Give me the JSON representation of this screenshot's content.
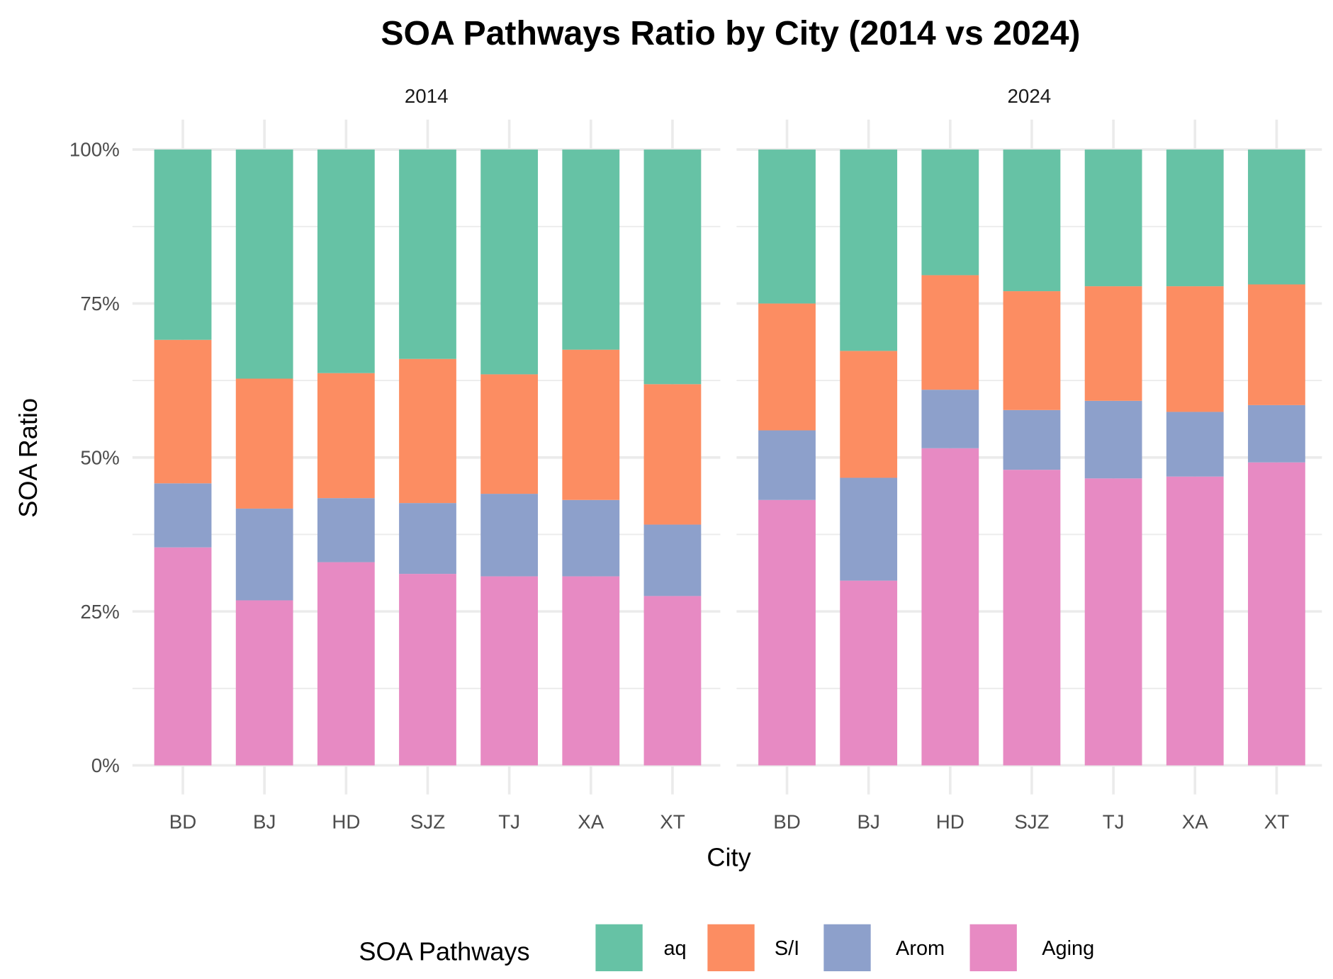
{
  "chart_data": {
    "type": "bar",
    "stacked": true,
    "normalized": true,
    "title": "SOA Pathways Ratio by City (2014 vs 2024)",
    "xlabel": "City",
    "ylabel": "SOA Ratio",
    "ylim": [
      0,
      100
    ],
    "y_ticks": [
      "0%",
      "25%",
      "50%",
      "75%",
      "100%"
    ],
    "y_tick_values": [
      0,
      25,
      50,
      75,
      100
    ],
    "categories": [
      "BD",
      "BJ",
      "HD",
      "SJZ",
      "TJ",
      "XA",
      "XT"
    ],
    "grid": true,
    "legend": {
      "title": "SOA Pathways",
      "position": "bottom",
      "entries": [
        "aq",
        "S/I",
        "Arom",
        "Aging"
      ]
    },
    "colors": {
      "aq": "#66c2a5",
      "S/I": "#fc8d62",
      "Arom": "#8da0cb",
      "Aging": "#e78ac3"
    },
    "stack_order_bottom_to_top": [
      "Aging",
      "Arom",
      "S/I",
      "aq"
    ],
    "facets": [
      {
        "label": "2014",
        "series": [
          {
            "name": "Aging",
            "values": [
              35.4,
              26.8,
              33.0,
              31.1,
              30.7,
              30.7,
              27.5
            ]
          },
          {
            "name": "Arom",
            "values": [
              10.4,
              14.9,
              10.4,
              11.5,
              13.4,
              12.4,
              11.6
            ]
          },
          {
            "name": "S/I",
            "values": [
              23.3,
              21.1,
              20.3,
              23.4,
              19.4,
              24.4,
              22.8
            ]
          },
          {
            "name": "aq",
            "values": [
              30.9,
              37.2,
              36.3,
              34.0,
              36.5,
              32.5,
              38.1
            ]
          }
        ]
      },
      {
        "label": "2024",
        "series": [
          {
            "name": "Aging",
            "values": [
              43.1,
              30.0,
              51.5,
              48.0,
              46.6,
              46.9,
              49.2
            ]
          },
          {
            "name": "Arom",
            "values": [
              11.3,
              16.7,
              9.5,
              9.7,
              12.6,
              10.5,
              9.3
            ]
          },
          {
            "name": "S/I",
            "values": [
              20.6,
              20.6,
              18.6,
              19.3,
              18.6,
              20.4,
              19.6
            ]
          },
          {
            "name": "aq",
            "values": [
              25.0,
              32.7,
              20.4,
              23.0,
              22.2,
              22.2,
              21.9
            ]
          }
        ]
      }
    ]
  }
}
